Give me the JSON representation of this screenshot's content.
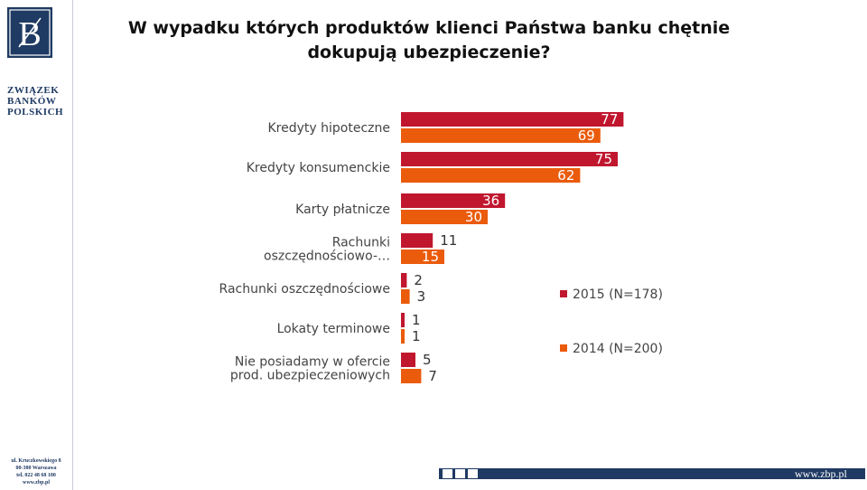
{
  "branding": {
    "org_name_lines": [
      "ZWIĄZEK",
      "BANKÓW",
      "POLSKICH"
    ],
    "address_lines": [
      "ul. Kruczkowskiego 8",
      "00-380 Warszawa",
      "tel. 022 48 68 180",
      "www.zbp.pl"
    ],
    "footer_url": "www.zbp.pl",
    "colors": {
      "navy": "#1f3a63"
    }
  },
  "chart_data": {
    "type": "bar",
    "orientation": "horizontal",
    "title": "W wypadku których produktów klienci Państwa banku chętnie dokupują ubezpieczenie?",
    "categories": [
      [
        "Kredyty hipoteczne"
      ],
      [
        "Kredyty konsumenckie"
      ],
      [
        "Karty płatnicze"
      ],
      [
        "Rachunki",
        "oszczędnościowo-…"
      ],
      [
        "Rachunki oszczędnościowe"
      ],
      [
        "Lokaty terminowe"
      ],
      [
        "Nie posiadamy w ofercie",
        "prod. ubezpieczeniowych"
      ]
    ],
    "series": [
      {
        "name": "2015 (N=178)",
        "color": "#c0172f",
        "values": [
          77,
          75,
          36,
          11,
          2,
          1,
          5
        ]
      },
      {
        "name": "2014 (N=200)",
        "color": "#ea5b0c",
        "values": [
          69,
          62,
          30,
          15,
          3,
          1,
          7
        ]
      }
    ],
    "xlim": [
      0,
      100
    ],
    "legend_position": "right",
    "grid": false
  }
}
